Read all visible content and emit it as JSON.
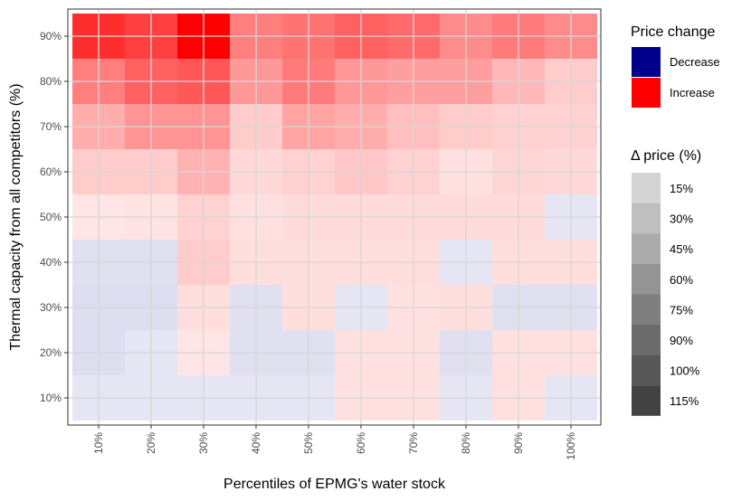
{
  "chart_data": {
    "type": "heatmap",
    "xlabel": "Percentiles of EPMG's water stock",
    "ylabel": "Thermal capacity from all competitors (%)",
    "x_categories": [
      "10%",
      "20%",
      "30%",
      "40%",
      "50%",
      "60%",
      "70%",
      "80%",
      "90%",
      "100%"
    ],
    "y_categories": [
      "10%",
      "20%",
      "30%",
      "40%",
      "50%",
      "60%",
      "70%",
      "80%",
      "90%"
    ],
    "grid": true,
    "color_legend": {
      "title": "Price change",
      "entries": [
        {
          "label": "Decrease",
          "color": "#00008b"
        },
        {
          "label": "Increase",
          "color": "#ff0000"
        }
      ]
    },
    "alpha_legend": {
      "title": "Δ price (%)",
      "levels": [
        "15%",
        "30%",
        "45%",
        "60%",
        "75%",
        "90%",
        "100%",
        "115%"
      ],
      "alphas": [
        0.17,
        0.25,
        0.33,
        0.42,
        0.5,
        0.58,
        0.66,
        0.74
      ]
    },
    "cells": {
      "direction": [
        [
          "decrease",
          "decrease",
          "decrease",
          "decrease",
          "decrease",
          "increase",
          "increase",
          "decrease",
          "increase",
          "decrease"
        ],
        [
          "decrease",
          "decrease",
          "increase",
          "decrease",
          "decrease",
          "increase",
          "increase",
          "decrease",
          "increase",
          "increase"
        ],
        [
          "decrease",
          "decrease",
          "increase",
          "decrease",
          "increase",
          "decrease",
          "increase",
          "increase",
          "decrease",
          "decrease"
        ],
        [
          "decrease",
          "decrease",
          "increase",
          "increase",
          "increase",
          "increase",
          "increase",
          "decrease",
          "increase",
          "increase"
        ],
        [
          "increase",
          "increase",
          "increase",
          "increase",
          "increase",
          "increase",
          "increase",
          "increase",
          "increase",
          "decrease"
        ],
        [
          "increase",
          "increase",
          "increase",
          "increase",
          "increase",
          "increase",
          "increase",
          "increase",
          "increase",
          "increase"
        ],
        [
          "increase",
          "increase",
          "increase",
          "increase",
          "increase",
          "increase",
          "increase",
          "increase",
          "increase",
          "increase"
        ],
        [
          "increase",
          "increase",
          "increase",
          "increase",
          "increase",
          "increase",
          "increase",
          "increase",
          "increase",
          "increase"
        ],
        [
          "increase",
          "increase",
          "increase",
          "increase",
          "increase",
          "increase",
          "increase",
          "increase",
          "increase",
          "increase"
        ]
      ],
      "alpha": [
        [
          0.1,
          0.1,
          0.1,
          0.1,
          0.1,
          0.12,
          0.12,
          0.1,
          0.12,
          0.1
        ],
        [
          0.13,
          0.1,
          0.1,
          0.12,
          0.12,
          0.12,
          0.12,
          0.12,
          0.12,
          0.12
        ],
        [
          0.13,
          0.13,
          0.13,
          0.12,
          0.13,
          0.1,
          0.12,
          0.13,
          0.12,
          0.12
        ],
        [
          0.12,
          0.12,
          0.2,
          0.13,
          0.13,
          0.13,
          0.13,
          0.1,
          0.13,
          0.13
        ],
        [
          0.1,
          0.11,
          0.18,
          0.12,
          0.14,
          0.14,
          0.14,
          0.14,
          0.14,
          0.1
        ],
        [
          0.2,
          0.2,
          0.3,
          0.15,
          0.18,
          0.22,
          0.18,
          0.12,
          0.16,
          0.15
        ],
        [
          0.32,
          0.42,
          0.42,
          0.2,
          0.36,
          0.32,
          0.25,
          0.2,
          0.18,
          0.18
        ],
        [
          0.5,
          0.62,
          0.66,
          0.4,
          0.52,
          0.4,
          0.38,
          0.38,
          0.28,
          0.2
        ],
        [
          0.82,
          0.75,
          1.0,
          0.5,
          0.55,
          0.62,
          0.58,
          0.45,
          0.52,
          0.45
        ]
      ]
    }
  }
}
